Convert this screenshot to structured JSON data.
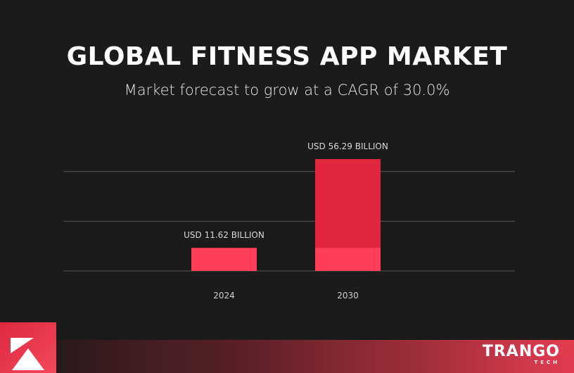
{
  "header": {
    "title": "GLOBAL FITNESS APP MARKET",
    "subtitle": "Market forecast to grow at a CAGR of 30.0%"
  },
  "chart_data": {
    "type": "bar",
    "categories": [
      "2024",
      "2030"
    ],
    "values": [
      11.62,
      56.29
    ],
    "data_labels": [
      "USD 11.62 BILLION",
      "USD 56.29 BILLION"
    ],
    "title": "GLOBAL FITNESS APP MARKET",
    "subtitle": "Market forecast to grow at a CAGR of 30.0%",
    "xlabel": "",
    "ylabel": "",
    "ylim": [
      0,
      60
    ],
    "grid": true,
    "gridlines": [
      0,
      25,
      50
    ],
    "colors": {
      "bar": "#ff3f57",
      "bar_growth": "#e0273f",
      "grid": "#555555",
      "background": "#1b1b1b"
    }
  },
  "brand": {
    "name": "TRANGO",
    "sub": "TECH"
  }
}
